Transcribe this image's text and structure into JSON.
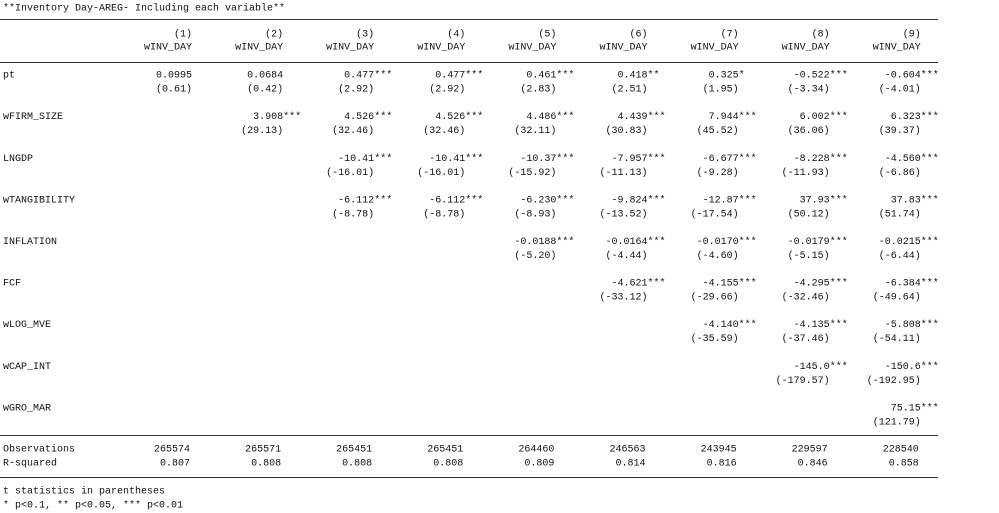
{
  "title": "**Inventory Day-AREG- Including each variable**",
  "columns": [
    {
      "number": "(1)",
      "depvar": "wINV_DAY"
    },
    {
      "number": "(2)",
      "depvar": "wINV_DAY"
    },
    {
      "number": "(3)",
      "depvar": "wINV_DAY"
    },
    {
      "number": "(4)",
      "depvar": "wINV_DAY"
    },
    {
      "number": "(5)",
      "depvar": "wINV_DAY"
    },
    {
      "number": "(6)",
      "depvar": "wINV_DAY"
    },
    {
      "number": "(7)",
      "depvar": "wINV_DAY"
    },
    {
      "number": "(8)",
      "depvar": "wINV_DAY"
    },
    {
      "number": "(9)",
      "depvar": "wINV_DAY"
    }
  ],
  "rows": [
    {
      "label": "pt",
      "cells": [
        {
          "coef": "0.0995",
          "t": "(0.61)"
        },
        {
          "coef": "0.0684",
          "t": "(0.42)"
        },
        {
          "coef": "0.477",
          "stars": "***",
          "t": "(2.92)"
        },
        {
          "coef": "0.477",
          "stars": "***",
          "t": "(2.92)"
        },
        {
          "coef": "0.461",
          "stars": "***",
          "t": "(2.83)"
        },
        {
          "coef": "0.418",
          "stars": "**",
          "t": "(2.51)"
        },
        {
          "coef": "0.325",
          "stars": "*",
          "t": "(1.95)"
        },
        {
          "coef": "-0.522",
          "stars": "***",
          "t": "(-3.34)"
        },
        {
          "coef": "-0.604",
          "stars": "***",
          "t": "(-4.01)"
        }
      ]
    },
    {
      "label": "wFIRM_SIZE",
      "cells": [
        null,
        {
          "coef": "3.908",
          "stars": "***",
          "t": "(29.13)"
        },
        {
          "coef": "4.526",
          "stars": "***",
          "t": "(32.46)"
        },
        {
          "coef": "4.526",
          "stars": "***",
          "t": "(32.46)"
        },
        {
          "coef": "4.486",
          "stars": "***",
          "t": "(32.11)"
        },
        {
          "coef": "4.439",
          "stars": "***",
          "t": "(30.83)"
        },
        {
          "coef": "7.944",
          "stars": "***",
          "t": "(45.52)"
        },
        {
          "coef": "6.002",
          "stars": "***",
          "t": "(36.06)"
        },
        {
          "coef": "6.323",
          "stars": "***",
          "t": "(39.37)"
        }
      ]
    },
    {
      "label": "LNGDP",
      "cells": [
        null,
        null,
        {
          "coef": "-10.41",
          "stars": "***",
          "t": "(-16.01)"
        },
        {
          "coef": "-10.41",
          "stars": "***",
          "t": "(-16.01)"
        },
        {
          "coef": "-10.37",
          "stars": "***",
          "t": "(-15.92)"
        },
        {
          "coef": "-7.957",
          "stars": "***",
          "t": "(-11.13)"
        },
        {
          "coef": "-6.677",
          "stars": "***",
          "t": "(-9.28)"
        },
        {
          "coef": "-8.228",
          "stars": "***",
          "t": "(-11.93)"
        },
        {
          "coef": "-4.560",
          "stars": "***",
          "t": "(-6.86)"
        }
      ]
    },
    {
      "label": "wTANGIBILITY",
      "cells": [
        null,
        null,
        {
          "coef": "-6.112",
          "stars": "***",
          "t": "(-8.78)"
        },
        {
          "coef": "-6.112",
          "stars": "***",
          "t": "(-8.78)"
        },
        {
          "coef": "-6.230",
          "stars": "***",
          "t": "(-8.93)"
        },
        {
          "coef": "-9.824",
          "stars": "***",
          "t": "(-13.52)"
        },
        {
          "coef": "-12.87",
          "stars": "***",
          "t": "(-17.54)"
        },
        {
          "coef": "37.93",
          "stars": "***",
          "t": "(50.12)"
        },
        {
          "coef": "37.83",
          "stars": "***",
          "t": "(51.74)"
        }
      ]
    },
    {
      "label": "INFLATION",
      "cells": [
        null,
        null,
        null,
        null,
        {
          "coef": "-0.0188",
          "stars": "***",
          "t": "(-5.20)"
        },
        {
          "coef": "-0.0164",
          "stars": "***",
          "t": "(-4.44)"
        },
        {
          "coef": "-0.0170",
          "stars": "***",
          "t": "(-4.60)"
        },
        {
          "coef": "-0.0179",
          "stars": "***",
          "t": "(-5.15)"
        },
        {
          "coef": "-0.0215",
          "stars": "***",
          "t": "(-6.44)"
        }
      ]
    },
    {
      "label": "FCF",
      "cells": [
        null,
        null,
        null,
        null,
        null,
        {
          "coef": "-4.621",
          "stars": "***",
          "t": "(-33.12)"
        },
        {
          "coef": "-4.155",
          "stars": "***",
          "t": "(-29.66)"
        },
        {
          "coef": "-4.295",
          "stars": "***",
          "t": "(-32.46)"
        },
        {
          "coef": "-6.384",
          "stars": "***",
          "t": "(-49.64)"
        }
      ]
    },
    {
      "label": "wLOG_MVE",
      "cells": [
        null,
        null,
        null,
        null,
        null,
        null,
        {
          "coef": "-4.140",
          "stars": "***",
          "t": "(-35.59)"
        },
        {
          "coef": "-4.135",
          "stars": "***",
          "t": "(-37.46)"
        },
        {
          "coef": "-5.808",
          "stars": "***",
          "t": "(-54.11)"
        }
      ]
    },
    {
      "label": "wCAP_INT",
      "cells": [
        null,
        null,
        null,
        null,
        null,
        null,
        null,
        {
          "coef": "-145.0",
          "stars": "***",
          "t": "(-179.57)"
        },
        {
          "coef": "-150.6",
          "stars": "***",
          "t": "(-192.95)"
        }
      ]
    },
    {
      "label": "wGRO_MAR",
      "cells": [
        null,
        null,
        null,
        null,
        null,
        null,
        null,
        null,
        {
          "coef": "75.15",
          "stars": "***",
          "t": "(121.79)"
        }
      ]
    }
  ],
  "stats": [
    {
      "label": "Observations",
      "values": [
        "265574",
        "265571",
        "265451",
        "265451",
        "264460",
        "246563",
        "243945",
        "229597",
        "228540"
      ]
    },
    {
      "label": "R-squared",
      "values": [
        "0.807",
        "0.808",
        "0.808",
        "0.808",
        "0.809",
        "0.814",
        "0.816",
        "0.846",
        "0.858"
      ]
    }
  ],
  "notes": [
    "t statistics in parentheses",
    "* p<0.1, ** p<0.05, *** p<0.01"
  ]
}
